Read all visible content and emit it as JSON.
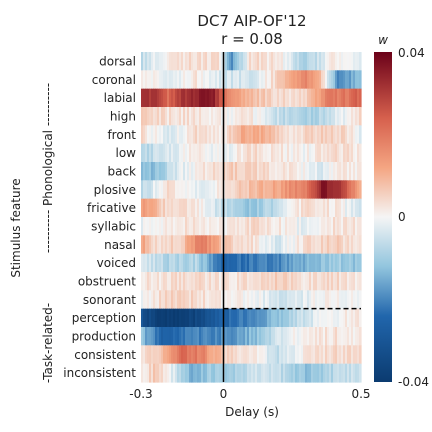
{
  "chart_data": {
    "type": "heatmap",
    "title": "DC7 AIP-OF'12",
    "subtitle": "r = 0.08",
    "xlabel": "Delay (s)",
    "ylabel": "Stimulus feature",
    "x_ticks": [
      "-0.3",
      "0",
      "0.5"
    ],
    "x_range": [
      -0.3,
      0.5
    ],
    "colorbar_label": "w",
    "colorbar_ticks": [
      "0.04",
      "0",
      "-0.04"
    ],
    "color_range": [
      -0.04,
      0.04
    ],
    "colors": {
      "low": "#0b3b70",
      "mid": "#f5f5f5",
      "high": "#6b0119"
    },
    "groups": [
      {
        "label": "---------- Phonological ----------",
        "rows": [
          0,
          13
        ]
      },
      {
        "label": "-Task-related-",
        "rows": [
          14,
          17
        ]
      }
    ],
    "rows": [
      "dorsal",
      "coronal",
      "labial",
      "high",
      "front",
      "low",
      "back",
      "plosive",
      "fricative",
      "syllabic",
      "nasal",
      "voiced",
      "obstruent",
      "sonorant",
      "perception",
      "production",
      "consistent",
      "inconsistent"
    ],
    "dashed_line_after_row": "sonorant",
    "zero_line_x": 0,
    "profiles": [
      [
        [
          -0.3,
          -0.006
        ],
        [
          -0.2,
          0.002
        ],
        [
          -0.1,
          0.004
        ],
        [
          -0.02,
          0.003
        ],
        [
          0.03,
          -0.018
        ],
        [
          0.1,
          0.004
        ],
        [
          0.2,
          0.002
        ],
        [
          0.3,
          -0.01
        ],
        [
          0.4,
          0.002
        ],
        [
          0.5,
          -0.005
        ]
      ],
      [
        [
          -0.3,
          0.003
        ],
        [
          -0.2,
          -0.003
        ],
        [
          -0.1,
          0.003
        ],
        [
          0.0,
          -0.004
        ],
        [
          0.1,
          -0.004
        ],
        [
          0.2,
          0.006
        ],
        [
          0.3,
          0.018
        ],
        [
          0.35,
          0.01
        ],
        [
          0.42,
          -0.02
        ],
        [
          0.5,
          -0.012
        ]
      ],
      [
        [
          -0.3,
          0.03
        ],
        [
          -0.25,
          0.032
        ],
        [
          -0.2,
          0.022
        ],
        [
          -0.15,
          0.03
        ],
        [
          -0.05,
          0.038
        ],
        [
          -0.02,
          0.03
        ],
        [
          0.03,
          0.014
        ],
        [
          0.1,
          0.008
        ],
        [
          0.2,
          0.004
        ],
        [
          0.3,
          0.004
        ],
        [
          0.38,
          0.018
        ],
        [
          0.45,
          0.02
        ],
        [
          0.5,
          0.024
        ]
      ],
      [
        [
          -0.3,
          0.006
        ],
        [
          -0.2,
          0.003
        ],
        [
          -0.1,
          0.003
        ],
        [
          0.0,
          0.0
        ],
        [
          0.1,
          0.002
        ],
        [
          0.2,
          -0.006
        ],
        [
          0.3,
          -0.01
        ],
        [
          0.4,
          -0.004
        ],
        [
          0.5,
          0.004
        ]
      ],
      [
        [
          -0.3,
          0.004
        ],
        [
          -0.2,
          -0.004
        ],
        [
          -0.1,
          0.004
        ],
        [
          0.0,
          0.002
        ],
        [
          0.08,
          0.012
        ],
        [
          0.15,
          0.01
        ],
        [
          0.25,
          0.003
        ],
        [
          0.35,
          0.006
        ],
        [
          0.45,
          0.004
        ],
        [
          0.5,
          -0.002
        ]
      ],
      [
        [
          -0.3,
          -0.008
        ],
        [
          -0.2,
          -0.004
        ],
        [
          -0.1,
          0.002
        ],
        [
          0.0,
          -0.002
        ],
        [
          0.1,
          0.004
        ],
        [
          0.2,
          0.002
        ],
        [
          0.3,
          0.0
        ],
        [
          0.4,
          0.004
        ],
        [
          0.5,
          0.002
        ]
      ],
      [
        [
          -0.3,
          -0.014
        ],
        [
          -0.25,
          -0.012
        ],
        [
          -0.15,
          -0.002
        ],
        [
          -0.05,
          0.004
        ],
        [
          0.05,
          0.006
        ],
        [
          0.15,
          0.004
        ],
        [
          0.25,
          0.002
        ],
        [
          0.35,
          -0.003
        ],
        [
          0.45,
          0.002
        ],
        [
          0.5,
          0.001
        ]
      ],
      [
        [
          -0.3,
          -0.008
        ],
        [
          -0.2,
          0.004
        ],
        [
          -0.1,
          -0.002
        ],
        [
          0.0,
          0.002
        ],
        [
          0.1,
          0.008
        ],
        [
          0.2,
          0.012
        ],
        [
          0.3,
          0.02
        ],
        [
          0.36,
          0.036
        ],
        [
          0.42,
          0.032
        ],
        [
          0.48,
          0.014
        ],
        [
          0.5,
          0.01
        ]
      ],
      [
        [
          -0.3,
          0.014
        ],
        [
          -0.2,
          0.004
        ],
        [
          -0.1,
          0.002
        ],
        [
          0.0,
          -0.006
        ],
        [
          0.1,
          -0.012
        ],
        [
          0.2,
          -0.006
        ],
        [
          0.3,
          0.004
        ],
        [
          0.4,
          0.002
        ],
        [
          0.5,
          -0.004
        ]
      ],
      [
        [
          -0.3,
          -0.002
        ],
        [
          -0.2,
          0.002
        ],
        [
          -0.1,
          0.003
        ],
        [
          0.0,
          0.001
        ],
        [
          0.1,
          0.004
        ],
        [
          0.2,
          0.002
        ],
        [
          0.3,
          -0.002
        ],
        [
          0.4,
          0.003
        ],
        [
          0.5,
          0.002
        ]
      ],
      [
        [
          -0.3,
          0.014
        ],
        [
          -0.25,
          0.004
        ],
        [
          -0.15,
          0.006
        ],
        [
          -0.08,
          0.02
        ],
        [
          0.0,
          0.006
        ],
        [
          0.1,
          0.004
        ],
        [
          0.2,
          -0.004
        ],
        [
          0.3,
          0.004
        ],
        [
          0.4,
          0.006
        ],
        [
          0.5,
          0.002
        ]
      ],
      [
        [
          -0.3,
          -0.004
        ],
        [
          -0.2,
          -0.008
        ],
        [
          -0.1,
          -0.008
        ],
        [
          0.0,
          -0.024
        ],
        [
          0.1,
          -0.022
        ],
        [
          0.2,
          -0.02
        ],
        [
          0.3,
          -0.014
        ],
        [
          0.4,
          -0.01
        ],
        [
          0.5,
          -0.012
        ]
      ],
      [
        [
          -0.3,
          0.002
        ],
        [
          -0.2,
          0.003
        ],
        [
          -0.1,
          0.004
        ],
        [
          0.0,
          0.002
        ],
        [
          0.1,
          0.004
        ],
        [
          0.2,
          0.006
        ],
        [
          0.3,
          0.003
        ],
        [
          0.4,
          0.004
        ],
        [
          0.5,
          0.002
        ]
      ],
      [
        [
          -0.3,
          -0.002
        ],
        [
          -0.2,
          0.006
        ],
        [
          -0.1,
          0.004
        ],
        [
          0.0,
          0.002
        ],
        [
          0.1,
          0.0
        ],
        [
          0.2,
          -0.004
        ],
        [
          0.3,
          -0.002
        ],
        [
          0.4,
          0.002
        ],
        [
          0.5,
          -0.002
        ]
      ],
      [
        [
          -0.3,
          -0.03
        ],
        [
          -0.25,
          -0.038
        ],
        [
          -0.18,
          -0.04
        ],
        [
          -0.1,
          -0.036
        ],
        [
          -0.02,
          -0.028
        ],
        [
          0.05,
          -0.022
        ],
        [
          0.12,
          -0.018
        ],
        [
          0.2,
          -0.012
        ],
        [
          0.3,
          -0.004
        ],
        [
          0.4,
          0.0
        ],
        [
          0.5,
          0.002
        ]
      ],
      [
        [
          -0.3,
          -0.012
        ],
        [
          -0.22,
          -0.026
        ],
        [
          -0.12,
          -0.02
        ],
        [
          -0.04,
          -0.02
        ],
        [
          0.04,
          -0.018
        ],
        [
          0.12,
          -0.012
        ],
        [
          0.2,
          -0.004
        ],
        [
          0.3,
          0.002
        ],
        [
          0.4,
          0.003
        ],
        [
          0.5,
          0.001
        ]
      ],
      [
        [
          -0.3,
          0.003
        ],
        [
          -0.22,
          0.008
        ],
        [
          -0.15,
          0.022
        ],
        [
          -0.08,
          0.018
        ],
        [
          0.0,
          0.006
        ],
        [
          0.1,
          0.003
        ],
        [
          0.2,
          -0.006
        ],
        [
          0.3,
          0.002
        ],
        [
          0.4,
          0.004
        ],
        [
          0.5,
          0.003
        ]
      ],
      [
        [
          -0.3,
          0.002
        ],
        [
          -0.25,
          0.006
        ],
        [
          -0.2,
          0.0
        ],
        [
          -0.12,
          -0.014
        ],
        [
          -0.04,
          -0.01
        ],
        [
          0.04,
          -0.01
        ],
        [
          0.12,
          -0.004
        ],
        [
          0.2,
          -0.006
        ],
        [
          0.3,
          -0.012
        ],
        [
          0.4,
          -0.008
        ],
        [
          0.5,
          -0.004
        ]
      ]
    ]
  }
}
